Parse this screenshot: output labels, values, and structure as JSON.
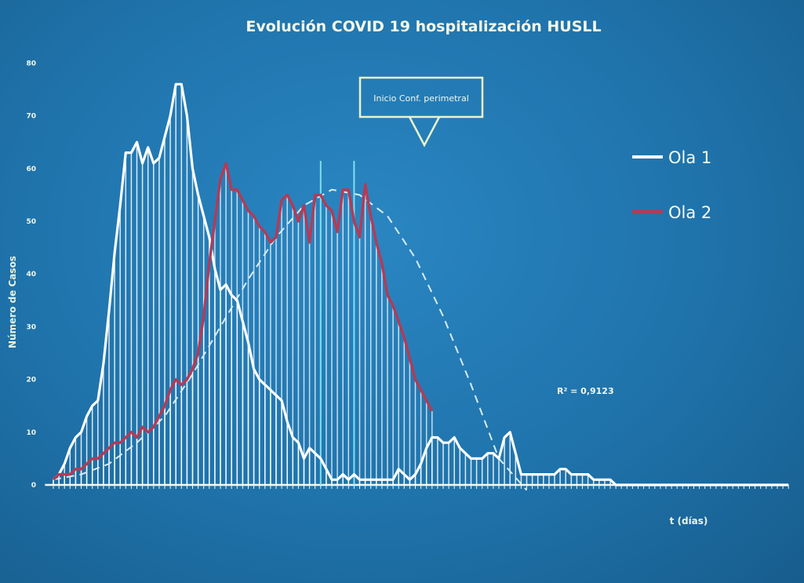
{
  "chart_data": {
    "type": "line",
    "title": "Evolución COVID 19 hospitalización HUSLL",
    "ylabel": "Número de Casos",
    "xlabel": "t (días)",
    "ylim": [
      0,
      80
    ],
    "yticks": [
      "0",
      "10",
      "20",
      "30",
      "40",
      "50",
      "60",
      "70",
      "80"
    ],
    "grid": false,
    "legend_position": "right",
    "annotation_label": "Inicio Conf. perimetral",
    "trendline_label": "R² = 0,9123",
    "series": [
      {
        "name": "Ola 1",
        "color": "#ffffff",
        "x": [
          0,
          2,
          4,
          6,
          8,
          10,
          12,
          14,
          16,
          18,
          20,
          22,
          24,
          26,
          28,
          30,
          32,
          34,
          36,
          38,
          40,
          42,
          44,
          46,
          48,
          50,
          52,
          54,
          56,
          58,
          60,
          62,
          64,
          66,
          68,
          70,
          72,
          74,
          76,
          78,
          80,
          82,
          84,
          86,
          88,
          90,
          92,
          94,
          96,
          98,
          100,
          102,
          104,
          106,
          108,
          110,
          112,
          114,
          116,
          118,
          120,
          122,
          124,
          126,
          128,
          130,
          132,
          134,
          136,
          138,
          140,
          142,
          144,
          146,
          148,
          150,
          152,
          154,
          156,
          158,
          160,
          162,
          164,
          166,
          168,
          170,
          172,
          174,
          176,
          178,
          180,
          182,
          184,
          186,
          188,
          190,
          192,
          194,
          196,
          198,
          200,
          202,
          204,
          206,
          208,
          210,
          212,
          214,
          216,
          218,
          220,
          222,
          224,
          226,
          228,
          230,
          232,
          234,
          236,
          238,
          240,
          242,
          244,
          246,
          248,
          250,
          252,
          254,
          256,
          258,
          260,
          262,
          264
        ],
        "values": [
          1,
          2,
          4,
          7,
          9,
          10,
          13,
          15,
          16,
          23,
          33,
          44,
          53,
          63,
          63,
          65,
          61,
          64,
          61,
          62,
          66,
          70,
          76,
          76,
          70,
          60,
          55,
          51,
          47,
          41,
          37,
          38,
          36,
          35,
          31,
          27,
          22,
          20,
          19,
          18,
          17,
          16,
          12,
          9,
          8,
          5,
          7,
          6,
          5,
          3,
          1,
          1,
          2,
          1,
          2,
          1,
          1,
          1,
          1,
          1,
          1,
          1,
          3,
          2,
          1,
          2,
          4,
          7,
          9,
          9,
          8,
          8,
          9,
          7,
          6,
          5,
          5,
          5,
          6,
          6,
          5,
          9,
          10,
          6,
          2,
          2,
          2,
          2,
          2,
          2,
          2,
          3,
          3,
          2,
          2,
          2,
          2,
          1,
          1,
          1,
          1,
          0,
          0,
          0,
          0,
          0,
          0,
          0,
          0,
          0,
          0,
          0,
          0,
          0,
          0,
          0,
          0,
          0,
          0,
          0,
          0,
          0,
          0,
          0,
          0,
          0,
          0,
          0,
          0,
          0,
          0,
          0,
          0
        ]
      },
      {
        "name": "Ola 2",
        "color": "#b53a55",
        "x": [
          0,
          2,
          4,
          6,
          8,
          10,
          12,
          14,
          16,
          18,
          20,
          22,
          24,
          26,
          28,
          30,
          32,
          34,
          36,
          38,
          40,
          42,
          44,
          46,
          48,
          50,
          52,
          54,
          56,
          58,
          60,
          62,
          64,
          66,
          68,
          70,
          72,
          74,
          76,
          78,
          80,
          82,
          84,
          86,
          88,
          90,
          92,
          94,
          96,
          98,
          100,
          102,
          104,
          106,
          108,
          110,
          112,
          114,
          116,
          118,
          120,
          122,
          124,
          126,
          128,
          130,
          132,
          134,
          136
        ],
        "values": [
          1,
          2,
          2,
          2,
          3,
          3,
          4,
          5,
          5,
          6,
          7,
          8,
          8,
          9,
          10,
          9,
          11,
          10,
          11,
          13,
          15,
          18,
          20,
          19,
          20,
          22,
          25,
          32,
          42,
          50,
          58,
          61,
          56,
          56,
          54,
          52,
          51,
          49,
          48,
          46,
          47,
          54,
          55,
          53,
          50,
          53,
          46,
          55,
          55,
          53,
          52,
          48,
          56,
          56,
          50,
          47,
          57,
          51,
          46,
          42,
          36,
          34,
          31,
          28,
          24,
          20,
          18,
          16,
          14
        ]
      }
    ],
    "trendline": {
      "type": "polynomial",
      "x": [
        0,
        10,
        20,
        30,
        40,
        50,
        60,
        70,
        80,
        90,
        100,
        110,
        120,
        130,
        140,
        150,
        160,
        170
      ],
      "values": [
        1,
        2,
        4,
        8,
        13,
        21,
        30,
        39,
        47,
        53,
        56,
        55,
        51,
        43,
        32,
        19,
        5,
        -2
      ]
    },
    "annotation_x_markers": [
      96,
      108
    ]
  }
}
